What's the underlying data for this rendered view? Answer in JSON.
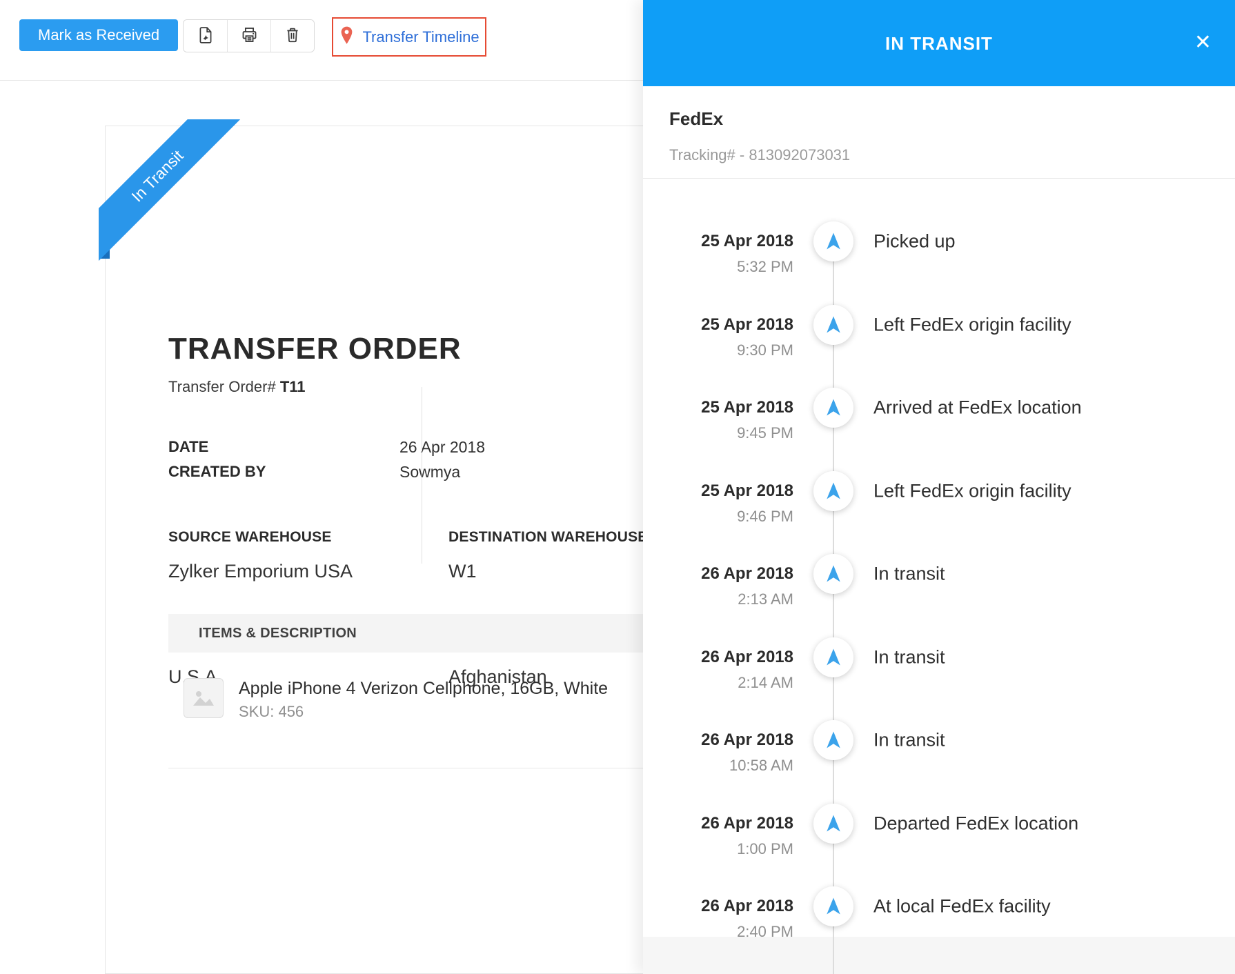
{
  "toolbar": {
    "mark_as_received_label": "Mark as Received",
    "transfer_timeline_label": "Transfer Timeline",
    "icons": {
      "pdf": "pdf-document-icon",
      "print": "printer-icon",
      "delete": "trash-icon",
      "timeline": "location-pin-icon"
    }
  },
  "document": {
    "ribbon_label": "In Transit",
    "title": "TRANSFER ORDER",
    "order_number_label": "Transfer Order#",
    "order_number": "T11",
    "date_label": "DATE",
    "date_value": "26 Apr 2018",
    "created_by_label": "CREATED BY",
    "created_by_value": "Sowmya",
    "source_warehouse_label": "SOURCE WAREHOUSE",
    "source_warehouse_name": "Zylker Emporium USA",
    "source_country": "U.S.A",
    "destination_warehouse_label": "DESTINATION WAREHOUSE",
    "destination_warehouse_name": "W1",
    "destination_country": "Afghanistan",
    "items_header": "ITEMS & DESCRIPTION",
    "item": {
      "name": "Apple iPhone 4 Verizon Cellphone, 16GB, White",
      "sku": "SKU: 456",
      "image_icon": "image-placeholder-icon"
    }
  },
  "panel": {
    "title": "IN TRANSIT",
    "close_glyph": "✕",
    "close_icon": "close-icon",
    "carrier": "FedEx",
    "tracking": "Tracking# - 813092073031",
    "event_icon": "navigation-arrow-icon",
    "events": [
      {
        "date": "25 Apr 2018",
        "time": "5:32 PM",
        "status": "Picked up"
      },
      {
        "date": "25 Apr 2018",
        "time": "9:30 PM",
        "status": "Left FedEx origin facility"
      },
      {
        "date": "25 Apr 2018",
        "time": "9:45 PM",
        "status": "Arrived at FedEx location"
      },
      {
        "date": "25 Apr 2018",
        "time": "9:46 PM",
        "status": "Left FedEx origin facility"
      },
      {
        "date": "26 Apr 2018",
        "time": "2:13 AM",
        "status": "In transit"
      },
      {
        "date": "26 Apr 2018",
        "time": "2:14 AM",
        "status": "In transit"
      },
      {
        "date": "26 Apr 2018",
        "time": "10:58 AM",
        "status": "In transit"
      },
      {
        "date": "26 Apr 2018",
        "time": "1:00 PM",
        "status": "Departed FedEx location"
      },
      {
        "date": "26 Apr 2018",
        "time": "2:40 PM",
        "status": "At local FedEx facility"
      }
    ]
  },
  "colors": {
    "panel_header_blue": "#0f9ef7",
    "primary_button_blue": "#2b9cf0",
    "ribbon_blue": "#2a96ea",
    "ribbon_fold_blue": "#1a70bd",
    "arrow_blue": "#3ba3eb",
    "link_blue": "#2f6fd8",
    "annotation_red": "#e64a33",
    "pin_red": "#ea6352"
  }
}
